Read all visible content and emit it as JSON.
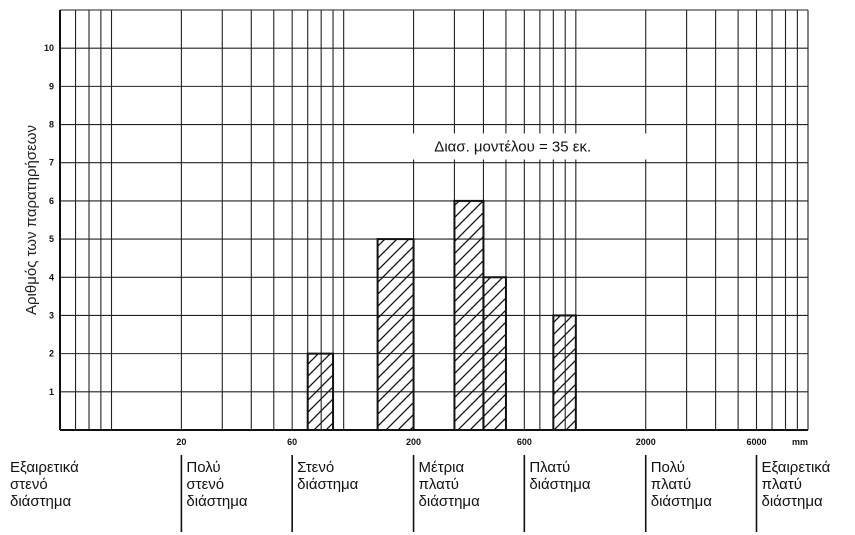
{
  "chart_data": {
    "type": "bar",
    "title": "",
    "xlabel": "",
    "ylabel": "Αριθμός των παρατηρήσεων",
    "x_scale": "log",
    "x_unit": "mm",
    "xlim": [
      6,
      10000
    ],
    "ylim": [
      0,
      11
    ],
    "y_ticks": [
      "1",
      "2",
      "3",
      "4",
      "5",
      "6",
      "7",
      "8",
      "9",
      "10"
    ],
    "x_ticks": [
      {
        "value": 20,
        "label": "20"
      },
      {
        "value": 60,
        "label": "60"
      },
      {
        "value": 200,
        "label": "200"
      },
      {
        "value": 600,
        "label": "600"
      },
      {
        "value": 2000,
        "label": "2000"
      },
      {
        "value": 6000,
        "label": "6000"
      }
    ],
    "grid": true,
    "annotation": "Διασ. μοντέλου = 35 εκ.",
    "bars": [
      {
        "x0": 70,
        "x1": 90,
        "value": 2
      },
      {
        "x0": 140,
        "x1": 200,
        "value": 5
      },
      {
        "x0": 300,
        "x1": 400,
        "value": 6
      },
      {
        "x0": 400,
        "x1": 500,
        "value": 4
      },
      {
        "x0": 800,
        "x1": 1000,
        "value": 3
      }
    ],
    "categories": [
      {
        "lines": [
          "Εξαιρετικά",
          "στενό",
          "διάστημα"
        ]
      },
      {
        "lines": [
          "Πολύ",
          "στενό",
          "διάστημα"
        ]
      },
      {
        "lines": [
          "Στενό",
          "διάστημα"
        ]
      },
      {
        "lines": [
          "Μέτρια",
          "πλατύ",
          "διάστημα"
        ]
      },
      {
        "lines": [
          "Πλατύ",
          "διάστημα"
        ]
      },
      {
        "lines": [
          "Πολύ",
          "πλατύ",
          "διάστημα"
        ]
      },
      {
        "lines": [
          "Εξαιρετικά",
          "πλατύ",
          "διάστημα"
        ]
      }
    ],
    "category_bounds": [
      6,
      20,
      60,
      200,
      600,
      2000,
      6000,
      10000
    ],
    "colors": {
      "line": "#111111",
      "background": "#ffffff"
    }
  }
}
